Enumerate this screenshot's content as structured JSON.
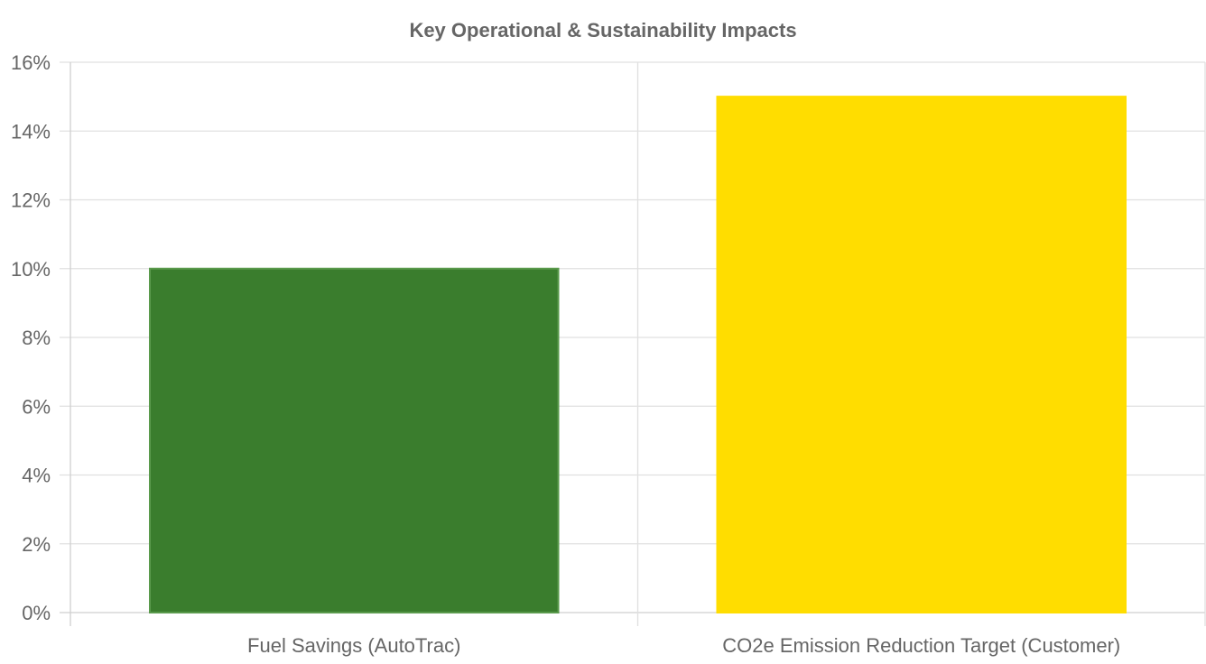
{
  "chart_data": {
    "type": "bar",
    "title": "Key Operational & Sustainability Impacts",
    "xlabel": "",
    "ylabel": "",
    "categories": [
      "Fuel Savings (AutoTrac)",
      "CO2e Emission Reduction Target (Customer)"
    ],
    "values": [
      10,
      15
    ],
    "bar_colors": [
      "#3a7d2d",
      "#ffdd00"
    ],
    "bar_border_colors": [
      "#5a9a4c",
      "#ffdd00"
    ],
    "value_suffix": "%",
    "ylim": [
      0,
      16
    ],
    "yticks": [
      "0%",
      "2%",
      "4%",
      "6%",
      "8%",
      "10%",
      "12%",
      "14%",
      "16%"
    ],
    "grid": true,
    "legend": "none"
  }
}
